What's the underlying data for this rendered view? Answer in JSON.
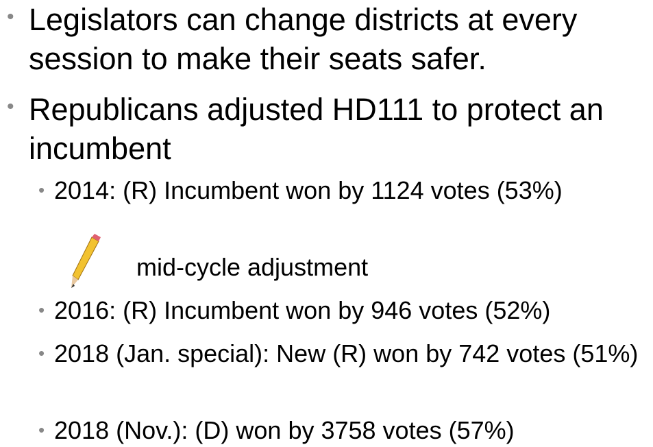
{
  "bullets": [
    "Legislators can change districts at every session to make their seats safer.",
    "Republicans adjusted HD111 to protect an incumbent"
  ],
  "sub_bullets": [
    "2014:  (R) Incumbent won by 1124 votes (53%)",
    "2016:  (R) Incumbent won by 946 votes (52%)",
    "2018 (Jan. special):  New (R) won by 742 votes (51%)",
    "2018 (Nov.):  (D) won by 3758 votes (57%)"
  ],
  "annotation": "mid-cycle adjustment"
}
